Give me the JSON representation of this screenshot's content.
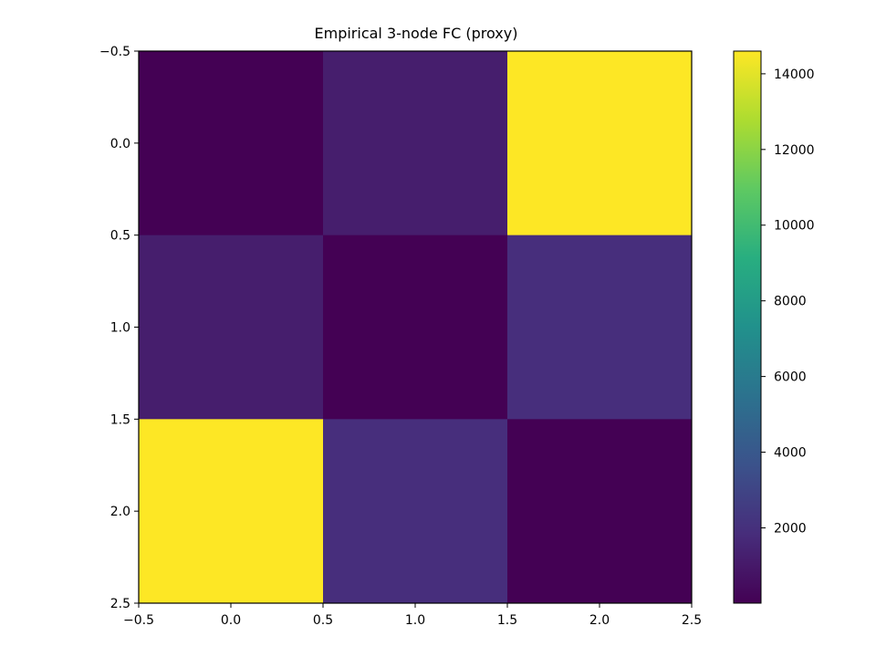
{
  "chart_data": {
    "type": "heatmap",
    "title": "Empirical 3-node FC (proxy)",
    "xlabel": "",
    "ylabel": "",
    "xlim": [
      -0.5,
      2.5
    ],
    "ylim": [
      2.5,
      -0.5
    ],
    "y_axis_inverted": true,
    "grid": false,
    "colormap": "viridis",
    "x_ticks": [
      "−0.5",
      "0.0",
      "0.5",
      "1.0",
      "1.5",
      "2.0",
      "2.5"
    ],
    "y_ticks": [
      "−0.5",
      "0.0",
      "0.5",
      "1.0",
      "1.5",
      "2.0",
      "2.5"
    ],
    "matrix": [
      [
        10,
        1200,
        14600
      ],
      [
        1200,
        10,
        1900
      ],
      [
        14600,
        1900,
        10
      ]
    ],
    "colorbar": {
      "min": 10,
      "max": 14600,
      "ticks": [
        "2000",
        "4000",
        "6000",
        "8000",
        "10000",
        "12000",
        "14000"
      ]
    }
  }
}
